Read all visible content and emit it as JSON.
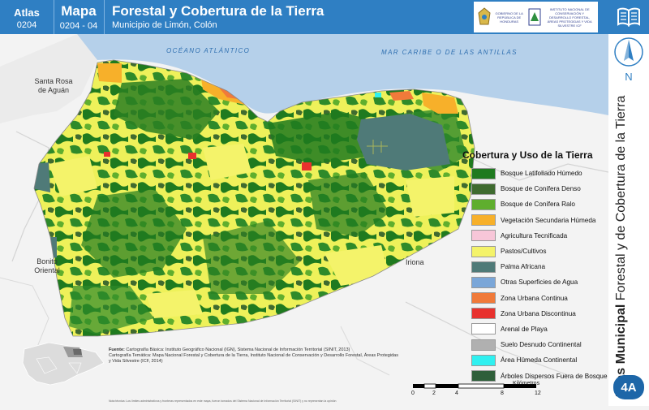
{
  "header": {
    "atlas_label": "Atlas",
    "atlas_code": "0204",
    "map_label": "Mapa",
    "map_code": "0204 - 04",
    "title": "Forestal y Cobertura de la Tierra",
    "subtitle": "Municipio de Limón, Colón",
    "logo_left_text": "GOBIERNO DE LA REPÚBLICA DE HONDURAS",
    "logo_right_text": "INSTITUTO NACIONAL DE CONSERVACIÓN Y DESARROLLO FORESTAL, ÁREAS PROTEGIDAS Y VIDA SILVESTRE ICF"
  },
  "north": {
    "label": "N"
  },
  "vertical_title": {
    "bold": "Atlas Municipal",
    "rest": " Forestal y de Cobertura de la Tierra"
  },
  "badge": "4A",
  "map": {
    "sea_labels": [
      "OCÉANO ATLÁNTICO",
      "MAR CARIBE O DE LAS ANTILLAS"
    ],
    "places": [
      "Santa Rosa de Aguán",
      "Bonito Oriental",
      "Iriona"
    ]
  },
  "legend": {
    "title": "Cobertura y Uso de la Tierra",
    "items": [
      {
        "label": "Bosque Latifoliado Húmedo",
        "color": "#1f7a1f"
      },
      {
        "label": "Bosque de Conífera Denso",
        "color": "#3f6b2f"
      },
      {
        "label": "Bosque de Conífera Ralo",
        "color": "#5fae2e"
      },
      {
        "label": "Vegetación Secundaria Húmeda",
        "color": "#f7b02a"
      },
      {
        "label": "Agricultura Tecnificada",
        "color": "#f7c6d8"
      },
      {
        "label": "Pastos/Cultivos",
        "color": "#f4f36a"
      },
      {
        "label": "Palma Africana",
        "color": "#4f7a78"
      },
      {
        "label": "Otras Superficies de Agua",
        "color": "#7aa6d8"
      },
      {
        "label": "Zona Urbana Continua",
        "color": "#f07a3a"
      },
      {
        "label": "Zona Urbana Discontinua",
        "color": "#e8312e"
      },
      {
        "label": "Arenal de Playa",
        "color": "#ffffff"
      },
      {
        "label": "Suelo Desnudo Continental",
        "color": "#b0b0b0"
      },
      {
        "label": "Área Húmeda Continental",
        "color": "#2ff0f0"
      },
      {
        "label": "Árboles Dispersos Fuera de Bosque",
        "color": "#2f5f3a"
      }
    ]
  },
  "source": {
    "label": "Fuente:",
    "lines": [
      "Cartografía Básica: Instituto Geográfico Nacional (IGN), Sistema Nacional de Información Territorial (SINIT, 2013)",
      "Cartografía Temática: Mapa Nacional Forestal y Cobertura de la Tierra, Instituto Nacional de Conservación y Desarrollo Forestal, Áreas Protegidas y Vida Silvestre (ICF, 2014)"
    ],
    "note": "Nota técnica: Los límites administrativos y fronteras representados en este mapa, fueron tomados del Sistema Nacional de Información Territorial (SINIT) y no representan la opinión"
  },
  "scale": {
    "ticks": [
      "0",
      "2",
      "4",
      "8",
      "12"
    ],
    "unit": "Kilómetros"
  }
}
